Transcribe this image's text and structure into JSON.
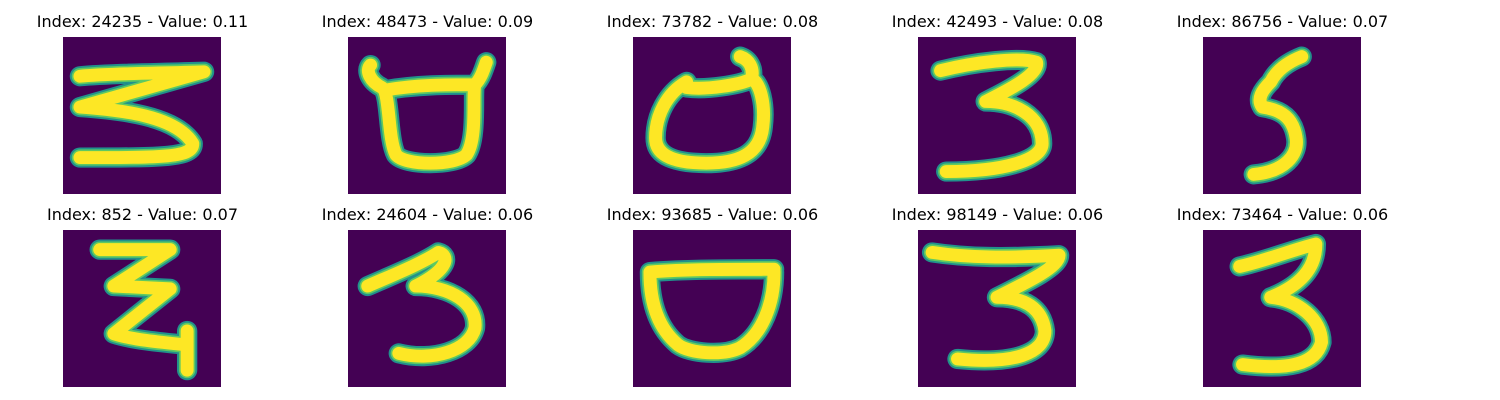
{
  "colors": {
    "background": "#440154",
    "stroke_core": "#fde725",
    "stroke_edge": "#21918c",
    "stroke_mid": "#5ec962"
  },
  "panels": [
    {
      "title": "Index: 24235 - Value: 0.11",
      "index": 24235,
      "value": 0.11,
      "digit_shape": "5"
    },
    {
      "title": "Index: 48473 - Value: 0.09",
      "index": 48473,
      "value": 0.09,
      "digit_shape": "bowl-with-horns"
    },
    {
      "title": "Index: 73782 - Value: 0.08",
      "index": 73782,
      "value": 0.08,
      "digit_shape": "bowl-with-hook"
    },
    {
      "title": "Index: 42493 - Value: 0.08",
      "index": 42493,
      "value": 0.08,
      "digit_shape": "3"
    },
    {
      "title": "Index: 86756 - Value: 0.07",
      "index": 86756,
      "value": 0.07,
      "digit_shape": "5"
    },
    {
      "title": "Index: 852 - Value: 0.07",
      "index": 852,
      "value": 0.07,
      "digit_shape": "zigzag-z"
    },
    {
      "title": "Index: 24604 - Value: 0.06",
      "index": 24604,
      "value": 0.06,
      "digit_shape": "3"
    },
    {
      "title": "Index: 93685 - Value: 0.06",
      "index": 93685,
      "value": 0.06,
      "digit_shape": "bowl"
    },
    {
      "title": "Index: 98149 - Value: 0.06",
      "index": 98149,
      "value": 0.06,
      "digit_shape": "3"
    },
    {
      "title": "Index: 73464 - Value: 0.06",
      "index": 73464,
      "value": 0.06,
      "digit_shape": "3"
    }
  ]
}
